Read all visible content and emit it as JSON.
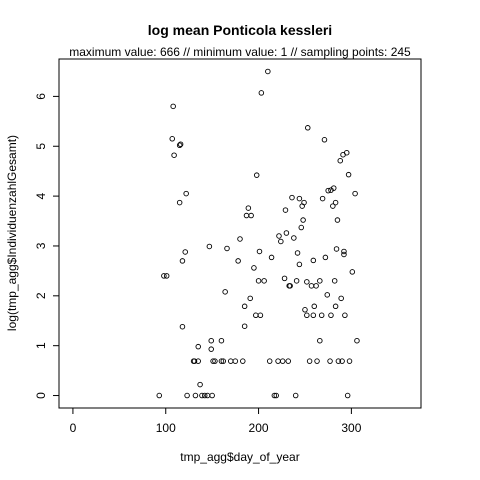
{
  "chart_data": {
    "type": "scatter",
    "title": "log mean Ponticola kessleri",
    "subtitle": "maximum value: 666  //  minimum value: 1  // sampling points: 245",
    "xlabel": "tmp_agg$day_of_year",
    "ylabel": "log(tmp_agg$IndividuenzahlGesamt)",
    "xlim": [
      -15,
      375
    ],
    "ylim": [
      -0.25,
      6.75
    ],
    "xticks": [
      0,
      100,
      200,
      300
    ],
    "yticks": [
      0,
      1,
      2,
      3,
      4,
      5,
      6
    ],
    "xtick_labels": [
      "0",
      "100",
      "200",
      "300"
    ],
    "ytick_labels": [
      "0",
      "1",
      "2",
      "3",
      "4",
      "5",
      "6"
    ],
    "grid": false,
    "legend": "none",
    "marker": "open-circle",
    "points": [
      [
        93,
        0
      ],
      [
        98,
        2.4
      ],
      [
        101,
        2.4
      ],
      [
        108,
        5.8
      ],
      [
        107,
        5.15
      ],
      [
        109,
        4.82
      ],
      [
        115,
        5.02
      ],
      [
        116,
        5.04
      ],
      [
        115,
        3.87
      ],
      [
        118,
        2.7
      ],
      [
        118,
        1.38
      ],
      [
        121,
        2.88
      ],
      [
        122,
        4.05
      ],
      [
        123,
        0
      ],
      [
        130,
        0.69
      ],
      [
        131,
        0.69
      ],
      [
        132,
        0
      ],
      [
        135,
        0.69
      ],
      [
        135,
        0.98
      ],
      [
        137,
        0.22
      ],
      [
        139,
        0
      ],
      [
        142,
        0
      ],
      [
        145,
        0
      ],
      [
        147,
        2.99
      ],
      [
        149,
        0.93
      ],
      [
        149,
        1.1
      ],
      [
        150,
        0
      ],
      [
        151,
        0.69
      ],
      [
        153,
        0.69
      ],
      [
        160,
        1.1
      ],
      [
        160,
        0.69
      ],
      [
        162,
        0.69
      ],
      [
        164,
        2.08
      ],
      [
        166,
        2.95
      ],
      [
        170,
        0.69
      ],
      [
        175,
        0.69
      ],
      [
        178,
        2.7
      ],
      [
        180,
        3.14
      ],
      [
        183,
        0.69
      ],
      [
        185,
        1.79
      ],
      [
        185,
        1.39
      ],
      [
        187,
        3.61
      ],
      [
        189,
        3.76
      ],
      [
        191,
        1.95
      ],
      [
        192,
        3.61
      ],
      [
        195,
        2.56
      ],
      [
        197,
        1.61
      ],
      [
        198,
        4.42
      ],
      [
        200,
        2.3
      ],
      [
        201,
        2.89
      ],
      [
        202,
        1.61
      ],
      [
        203,
        6.07
      ],
      [
        206,
        2.3
      ],
      [
        210,
        6.5
      ],
      [
        212,
        0.69
      ],
      [
        214,
        2.77
      ],
      [
        217,
        0
      ],
      [
        219,
        0
      ],
      [
        221,
        0.69
      ],
      [
        222,
        3.2
      ],
      [
        224,
        3.09
      ],
      [
        226,
        0.69
      ],
      [
        228,
        2.35
      ],
      [
        229,
        3.72
      ],
      [
        230,
        3.26
      ],
      [
        232,
        0.69
      ],
      [
        233,
        2.2
      ],
      [
        234,
        2.2
      ],
      [
        236,
        3.97
      ],
      [
        238,
        3.16
      ],
      [
        240,
        0
      ],
      [
        241,
        2.3
      ],
      [
        242,
        2.86
      ],
      [
        244,
        3.95
      ],
      [
        244,
        2.63
      ],
      [
        246,
        3.37
      ],
      [
        247,
        3.8
      ],
      [
        248,
        3.52
      ],
      [
        249,
        3.87
      ],
      [
        250,
        1.72
      ],
      [
        252,
        2.28
      ],
      [
        252,
        1.61
      ],
      [
        253,
        5.37
      ],
      [
        255,
        0.69
      ],
      [
        257,
        2.2
      ],
      [
        259,
        1.61
      ],
      [
        259,
        2.71
      ],
      [
        260,
        1.79
      ],
      [
        262,
        2.2
      ],
      [
        263,
        0.69
      ],
      [
        266,
        1.1
      ],
      [
        266,
        2.3
      ],
      [
        268,
        1.61
      ],
      [
        269,
        3.95
      ],
      [
        271,
        5.13
      ],
      [
        272,
        2.77
      ],
      [
        274,
        2.02
      ],
      [
        275,
        4.11
      ],
      [
        277,
        0.69
      ],
      [
        278,
        4.12
      ],
      [
        278,
        1.61
      ],
      [
        280,
        3.8
      ],
      [
        281,
        4.16
      ],
      [
        282,
        2.3
      ],
      [
        283,
        3.87
      ],
      [
        283,
        1.79
      ],
      [
        284,
        2.94
      ],
      [
        285,
        3.52
      ],
      [
        286,
        0.69
      ],
      [
        288,
        4.71
      ],
      [
        289,
        1.95
      ],
      [
        290,
        0.69
      ],
      [
        291,
        4.83
      ],
      [
        292,
        2.89
      ],
      [
        292,
        2.83
      ],
      [
        293,
        1.61
      ],
      [
        295,
        4.87
      ],
      [
        296,
        0
      ],
      [
        297,
        4.43
      ],
      [
        298,
        0.69
      ],
      [
        301,
        2.48
      ],
      [
        304,
        4.05
      ],
      [
        306,
        1.1
      ]
    ]
  }
}
